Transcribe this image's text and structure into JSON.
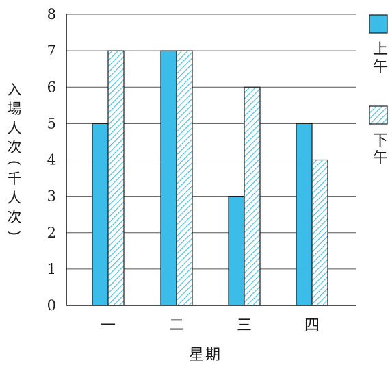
{
  "chart_data": {
    "type": "bar",
    "categories": [
      "一",
      "二",
      "三",
      "四"
    ],
    "series": [
      {
        "name": "上午",
        "values": [
          5,
          7,
          3,
          5
        ],
        "color": "#3cbde9",
        "pattern": "solid"
      },
      {
        "name": "下午",
        "values": [
          7,
          7,
          6,
          4
        ],
        "color": "#3cbde9",
        "pattern": "hatched"
      }
    ],
    "title": "",
    "xlabel": "星期",
    "ylabel": "入場人次(千人次)",
    "ylim": [
      0,
      8
    ],
    "yticks": [
      0,
      1,
      2,
      3,
      4,
      5,
      6,
      7,
      8
    ],
    "grid": true,
    "legend_position": "right"
  }
}
